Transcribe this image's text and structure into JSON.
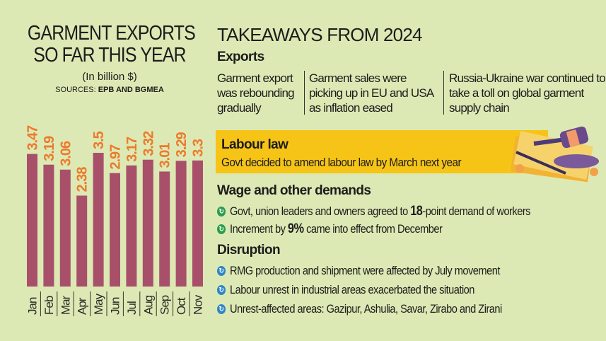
{
  "left": {
    "title_line1": "GARMENT EXPORTS",
    "title_line2": "SO FAR THIS YEAR",
    "unit": "(In billion $)",
    "sources_label": "SOURCES:",
    "sources": "EPB AND BGMEA"
  },
  "chart_data": {
    "type": "bar",
    "title": "GARMENT EXPORTS SO FAR THIS YEAR",
    "ylabel": "(In billion $)",
    "categories": [
      "Jan",
      "Feb",
      "Mar",
      "Apr",
      "May",
      "Jun",
      "Jul",
      "Aug",
      "Sep",
      "Oct",
      "Nov"
    ],
    "values": [
      3.47,
      3.19,
      3.06,
      2.38,
      3.5,
      2.97,
      3.17,
      3.32,
      3.01,
      3.29,
      3.3
    ],
    "value_labels": [
      "3.47",
      "3.19",
      "3.06",
      "2.38",
      "3.5",
      "2.97",
      "3.17",
      "3.32",
      "3.01",
      "3.29",
      "3.3"
    ],
    "ylim": [
      0,
      3.5
    ],
    "grid": false,
    "bar_color": "#a8506a",
    "label_color": "#ec7a2c"
  },
  "right": {
    "title": "TAKEAWAYS FROM 2024",
    "exports": {
      "heading": "Exports",
      "cols": [
        "Garment export was rebounding gradually",
        "Garment sales were picking up in EU and USA as inflation eased",
        "Russia-Ukraine war continued to take a toll on global garment supply chain"
      ]
    },
    "labour": {
      "heading": "Labour law",
      "text": "Govt decided to amend labour law by March next year",
      "band_color": "#f6c416"
    },
    "wage": {
      "heading": "Wage and other demands",
      "icon_color": "#2a9d4a",
      "items": [
        {
          "pre": "Govt, union leaders and owners agreed to ",
          "bold": "18",
          "post": "-point demand of workers"
        },
        {
          "pre": "Increment by ",
          "bold": "9%",
          "post": " came into effect from December"
        }
      ]
    },
    "disruption": {
      "heading": "Disruption",
      "icon_color": "#2f86c8",
      "items": [
        "RMG production and shipment were affected by July movement",
        "Labour unrest in industrial areas exacerbated the situation",
        "Unrest-affected areas: Gazipur, Ashulia, Savar, Zirabo and Zirani"
      ]
    }
  }
}
